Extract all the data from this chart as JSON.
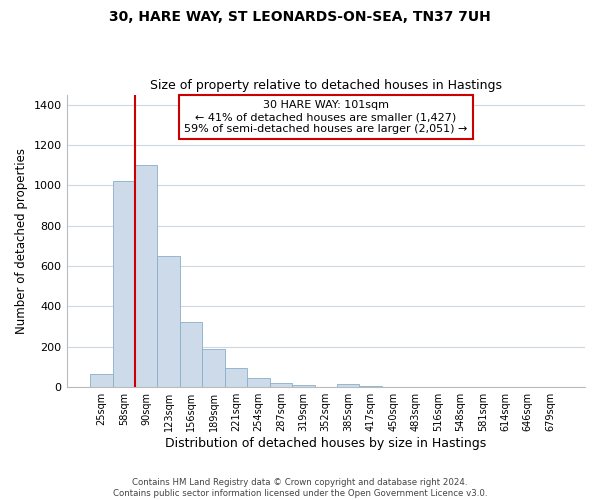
{
  "title": "30, HARE WAY, ST LEONARDS-ON-SEA, TN37 7UH",
  "subtitle": "Size of property relative to detached houses in Hastings",
  "xlabel": "Distribution of detached houses by size in Hastings",
  "ylabel": "Number of detached properties",
  "bar_color": "#ccdaea",
  "bar_edge_color": "#8aaec8",
  "categories": [
    "25sqm",
    "58sqm",
    "90sqm",
    "123sqm",
    "156sqm",
    "189sqm",
    "221sqm",
    "254sqm",
    "287sqm",
    "319sqm",
    "352sqm",
    "385sqm",
    "417sqm",
    "450sqm",
    "483sqm",
    "516sqm",
    "548sqm",
    "581sqm",
    "614sqm",
    "646sqm",
    "679sqm"
  ],
  "values": [
    65,
    1020,
    1100,
    650,
    325,
    190,
    95,
    48,
    22,
    10,
    0,
    15,
    5,
    0,
    0,
    0,
    0,
    0,
    0,
    0,
    0
  ],
  "ylim": [
    0,
    1450
  ],
  "yticks": [
    0,
    200,
    400,
    600,
    800,
    1000,
    1200,
    1400
  ],
  "vline_color": "#cc0000",
  "annotation_title": "30 HARE WAY: 101sqm",
  "annotation_line1": "← 41% of detached houses are smaller (1,427)",
  "annotation_line2": "59% of semi-detached houses are larger (2,051) →",
  "footer1": "Contains HM Land Registry data © Crown copyright and database right 2024.",
  "footer2": "Contains public sector information licensed under the Open Government Licence v3.0.",
  "bg_color": "#ffffff",
  "grid_color": "#ccd8e4"
}
